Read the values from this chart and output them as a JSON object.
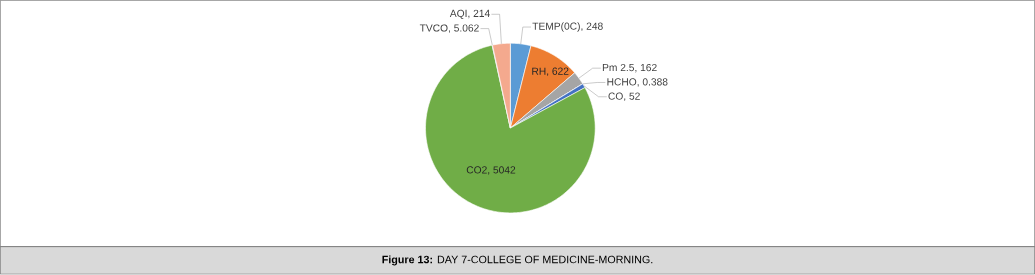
{
  "chart_data": {
    "type": "pie",
    "title": "**Figure 13:** DAY 7-COLLEGE OF MEDICINE-MORNING.",
    "categories": [
      "TEMP(0C)",
      "RH",
      "Pm 2.5",
      "HCHO",
      "CO",
      "CO2",
      "TVCO",
      "AQI"
    ],
    "values": [
      248,
      622,
      162,
      0.388,
      52,
      5042,
      5.062,
      214
    ],
    "value_labels": [
      ", 248",
      ", 622",
      ", 162",
      ", 0.388",
      ", 52",
      ", 5042",
      ", 5.062",
      ", 214"
    ],
    "colors": [
      "#5b9bd5",
      "#ed7d31",
      "#a5a5a5",
      "#ffc000",
      "#4472c4",
      "#70ad47",
      "#255e91",
      "#f4a98e"
    ]
  }
}
